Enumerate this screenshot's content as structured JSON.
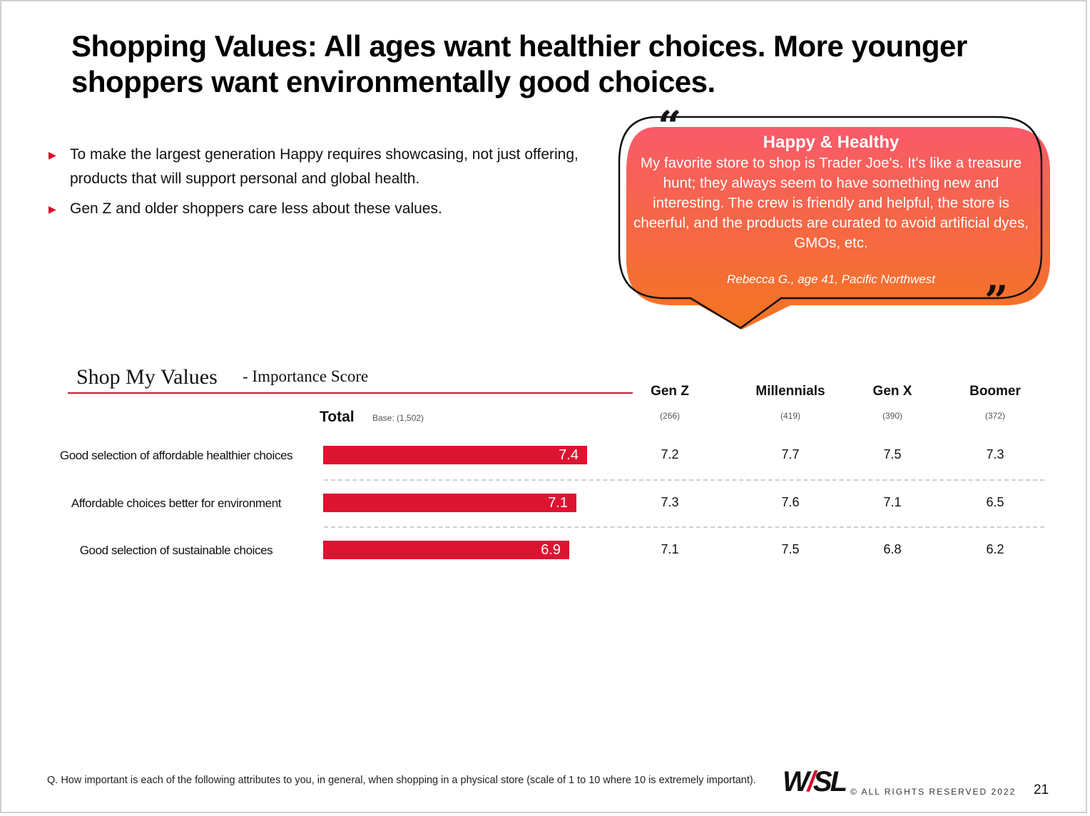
{
  "title": "Shopping Values: All ages want healthier choices.  More younger shoppers want environmentally good choices.",
  "bullets": [
    "To make the largest generation Happy requires showcasing, not just offering, products that will support personal and global health.",
    "Gen Z and older shoppers care less about these values."
  ],
  "quote": {
    "open_mark": "“",
    "close_mark": "”",
    "heading": "Happy & Healthy",
    "body": "My favorite store to shop is Trader Joe's. It's like a treasure hunt; they always seem to have something new and interesting. The crew is friendly and helpful, the store is cheerful, and the products are curated to avoid artificial dyes, GMOs, etc.",
    "attribution": "Rebecca G., age 41, Pacific Northwest",
    "gradient_top": "#f95a6a",
    "gradient_bottom": "#f37520"
  },
  "chart_data": {
    "type": "bar",
    "title": "Shop My Values",
    "subtitle": "-  Importance Score",
    "total_label": "Total",
    "total_base": "Base: (1,502)",
    "bar_color": "#dc1431",
    "xlim": [
      0,
      10
    ],
    "categories": [
      "Good selection of affordable healthier choices",
      "Affordable choices better for environment",
      "Good selection of sustainable choices"
    ],
    "values": [
      7.4,
      7.1,
      6.9
    ],
    "value_labels": [
      "7.4",
      "7.1",
      "6.9"
    ],
    "generations": [
      {
        "name": "Gen Z",
        "base": "(266)",
        "values": [
          "7.2",
          "7.3",
          "7.1"
        ]
      },
      {
        "name": "Millennials",
        "base": "(419)",
        "values": [
          "7.7",
          "7.6",
          "7.5"
        ]
      },
      {
        "name": "Gen X",
        "base": "(390)",
        "values": [
          "7.5",
          "7.1",
          "6.8"
        ]
      },
      {
        "name": "Boomer",
        "base": "(372)",
        "values": [
          "7.3",
          "6.5",
          "6.2"
        ]
      }
    ]
  },
  "footer": {
    "question": "Q. How important is each of the following attributes to you, in general, when shopping in a physical store (scale of 1 to 10 where 10 is extremely important).",
    "logo_w": "W",
    "logo_slash": "/",
    "logo_sl": "SL",
    "rights": "© ALL RIGHTS RESERVED 2022",
    "page": "21"
  }
}
